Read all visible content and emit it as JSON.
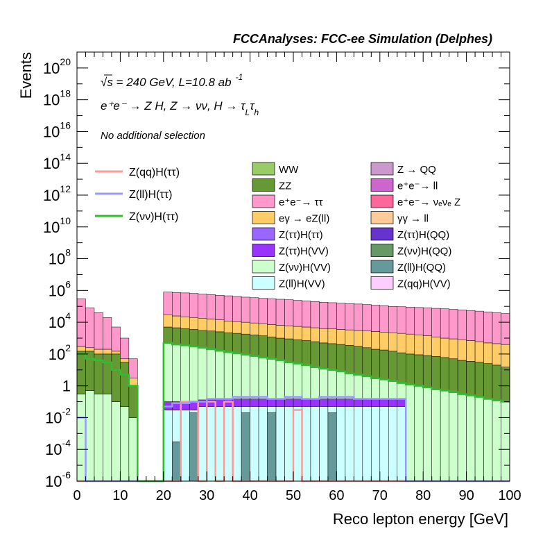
{
  "header": {
    "title": "FCCAnalyses: FCC-ee Simulation (Delphes)"
  },
  "labels": {
    "sqrt_s": "√s = 240 GeV, L=10.8 ab",
    "lumi_exp": "-1",
    "process": "e⁺e⁻ → Z H, Z → νν, H → τ",
    "process_sub1": "L",
    "process_tau2": "τ",
    "process_sub2": "h",
    "selection": "No additional selection"
  },
  "chart_data": {
    "type": "histogram-stacked-log",
    "xlabel": "Reco lepton energy [GeV]",
    "ylabel": "Events",
    "xlim": [
      0,
      100
    ],
    "ylim": [
      1e-06,
      1e+21
    ],
    "yscale": "log",
    "bin_width": 2,
    "x_ticks": [
      "0",
      "10",
      "20",
      "30",
      "40",
      "50",
      "60",
      "70",
      "80",
      "90",
      "100"
    ],
    "y_ticks": [
      {
        "mant": "10",
        "exp": "-6"
      },
      {
        "mant": "10",
        "exp": "-4"
      },
      {
        "mant": "10",
        "exp": "-2"
      },
      {
        "mant": "1",
        "exp": ""
      },
      {
        "mant": "10",
        "exp": "2"
      },
      {
        "mant": "10",
        "exp": "4"
      },
      {
        "mant": "10",
        "exp": "6"
      },
      {
        "mant": "10",
        "exp": "8"
      },
      {
        "mant": "10",
        "exp": "10"
      },
      {
        "mant": "10",
        "exp": "12"
      },
      {
        "mant": "10",
        "exp": "14"
      },
      {
        "mant": "10",
        "exp": "16"
      },
      {
        "mant": "10",
        "exp": "18"
      },
      {
        "mant": "10",
        "exp": "20"
      }
    ],
    "stack_legend": [
      {
        "name": "WW",
        "color": "#99cc66"
      },
      {
        "name": "Z → QQ",
        "color": "#cc99cc"
      },
      {
        "name": "ZZ",
        "color": "#669933"
      },
      {
        "name": "e⁺e⁻→ ll",
        "color": "#cc66cc"
      },
      {
        "name": "e⁺e⁻→ ττ",
        "color": "#ff99cc"
      },
      {
        "name": "e⁺e⁻→ νₑνₑ Z",
        "color": "#ff6699"
      },
      {
        "name": "eγ → eZ(ll)",
        "color": "#ffcc66"
      },
      {
        "name": "γγ → ll",
        "color": "#ffcc99"
      },
      {
        "name": "Z(ττ)H(ττ)",
        "color": "#9966ff"
      },
      {
        "name": "Z(ττ)H(QQ)",
        "color": "#6633cc"
      },
      {
        "name": "Z(ττ)H(VV)",
        "color": "#9933ff"
      },
      {
        "name": "Z(νν)H(QQ)",
        "color": "#669966"
      },
      {
        "name": "Z(νν)H(VV)",
        "color": "#ccffcc"
      },
      {
        "name": "Z(ll)H(QQ)",
        "color": "#669999"
      },
      {
        "name": "Z(ll)H(VV)",
        "color": "#ccffff"
      },
      {
        "name": "Z(qq)H(VV)",
        "color": "#ffccff"
      }
    ],
    "signal_legend": [
      {
        "name": "Z(qq)H(ττ)",
        "color": "#ff9999"
      },
      {
        "name": "Z(ll)H(ττ)",
        "color": "#9999ff"
      },
      {
        "name": "Z(νν)H(ττ)",
        "color": "#33bb33"
      }
    ],
    "stack_bounds": {
      "bins_low_energy": [
        [
          1e-06,
          1e-06,
          1e-06,
          1e-06,
          1e-06,
          1e-06,
          1e-06,
          1e-06,
          1e-06,
          1e-06,
          1e-06,
          1e-06,
          1e-06,
          1e-06,
          1e-06,
          1e-06,
          1e-06,
          1e-06,
          1e-06,
          1e-06,
          1e-06,
          1e-06,
          1e-06,
          1e-06,
          1e-06,
          1e-06,
          1e-06,
          1e-06,
          1e-06,
          1e-06,
          1e-06,
          1e-06,
          1e-06,
          1e-06,
          1e-06,
          1e-06,
          1e-06,
          1e-06,
          1e-06,
          1e-06,
          1e-06,
          1e-06,
          1e-06,
          1e-06,
          1e-06,
          1e-06,
          1e-06,
          1e-06,
          1e-06,
          1e-06
        ],
        [
          1e-06,
          1e-06,
          1e-06,
          1e-06,
          1e-06,
          1e-06,
          1e-06,
          1e-06,
          1e-06,
          1e-06,
          1e-06,
          0.0003,
          1e-06,
          0.02,
          1e-06,
          1e-06,
          1e-06,
          1e-06,
          1e-06,
          0.02,
          1e-06,
          1e-06,
          0.02,
          1e-06,
          1e-06,
          1e-06,
          1e-06,
          1e-06,
          1e-06,
          0.02,
          1e-06,
          1e-06,
          1e-06,
          1e-06,
          1e-06,
          1e-06,
          1e-06,
          1e-06,
          1e-06,
          1e-06,
          1e-06,
          1e-06,
          1e-06,
          1e-06,
          1e-06,
          1e-06,
          1e-06,
          1e-06,
          1e-06,
          1e-06
        ],
        [
          1e-06,
          1e-06,
          1e-06,
          1e-06,
          1e-06,
          1e-06,
          1e-06,
          1e-06,
          1e-06,
          1e-06,
          0.03,
          0.03,
          0.03,
          0.03,
          0.05,
          0.05,
          0.05,
          0.05,
          0.05,
          0.05,
          0.05,
          0.05,
          0.05,
          0.05,
          0.05,
          0.05,
          0.05,
          0.05,
          0.05,
          0.05,
          0.05,
          0.05,
          0.05,
          0.05,
          0.05,
          0.05,
          0.05,
          0.05,
          1e-06,
          1e-06,
          1e-06,
          1e-06,
          1e-06,
          1e-06,
          1e-06,
          1e-06,
          1e-06,
          1e-06,
          1e-06,
          1e-06
        ],
        [
          1e-06,
          1e-06,
          1e-06,
          1e-06,
          1e-06,
          1e-06,
          1e-06,
          1e-06,
          1e-06,
          1e-06,
          0.1,
          0.1,
          0.1,
          0.1,
          0.13,
          0.13,
          0.15,
          0.15,
          0.15,
          0.15,
          0.15,
          0.15,
          0.15,
          0.15,
          0.15,
          0.15,
          0.15,
          0.15,
          0.15,
          0.15,
          0.15,
          0.15,
          0.15,
          0.15,
          0.15,
          0.15,
          0.15,
          0.15,
          1e-06,
          1e-06,
          1e-06,
          1e-06,
          1e-06,
          1e-06,
          1e-06,
          1e-06,
          1e-06,
          1e-06,
          1e-06,
          1e-06
        ]
      ],
      "green_boundary": [
        0.3,
        0.5,
        0.3,
        0.3,
        0.1,
        0.05,
        0.01,
        1e-06,
        1e-06,
        1e-06,
        500,
        400,
        350,
        300,
        250,
        200,
        160,
        130,
        110,
        90,
        75,
        60,
        50,
        40,
        30,
        25,
        20,
        15,
        12,
        10,
        8,
        6,
        5,
        4,
        3,
        2.5,
        2,
        1.5,
        1.2,
        1,
        0.8,
        0.6,
        0.5,
        0.4,
        0.3,
        0.25,
        0.2,
        0.15,
        0.12,
        0.1
      ],
      "lightpink_boundary": [
        150,
        150,
        100,
        100,
        100,
        30,
        1,
        1e-06,
        1e-06,
        1e-06,
        5000,
        4500,
        4000,
        3500,
        3000,
        2800,
        2500,
        2200,
        2000,
        1800,
        1600,
        1400,
        1200,
        1000,
        900,
        800,
        700,
        600,
        500,
        450,
        400,
        350,
        300,
        250,
        200,
        180,
        150,
        120,
        100,
        90,
        80,
        70,
        60,
        50,
        40,
        35,
        30,
        25,
        20,
        15
      ],
      "olive_boundary": [
        300,
        250,
        200,
        200,
        150,
        50,
        3,
        1e-06,
        1e-06,
        1e-06,
        30000,
        25000,
        22000,
        20000,
        18000,
        16000,
        14000,
        12000,
        11000,
        10000,
        9000,
        8000,
        7000,
        6500,
        6000,
        5500,
        5000,
        4500,
        4000,
        3800,
        3500,
        3300,
        3000,
        2800,
        2600,
        2400,
        2200,
        2000,
        1800,
        1600,
        1400,
        1200,
        1000,
        900,
        800,
        700,
        600,
        500,
        450,
        400
      ],
      "total": [
        300000,
        80000,
        40000,
        20000,
        5000,
        1000,
        50,
        1e-06,
        1e-06,
        1e-06,
        800000,
        750000,
        700000,
        650000,
        600000,
        550000,
        500000,
        460000,
        420000,
        380000,
        350000,
        320000,
        300000,
        280000,
        260000,
        240000,
        220000,
        200000,
        180000,
        170000,
        160000,
        150000,
        140000,
        130000,
        120000,
        110000,
        100000,
        95000,
        90000,
        85000,
        80000,
        75000,
        70000,
        65000,
        60000,
        55000,
        50000,
        45000,
        40000,
        35000
      ]
    },
    "signal_values": {
      "Z(qq)H(ττ)": [
        1e-06,
        1e-06,
        1e-06,
        1e-06,
        1e-06,
        1e-06,
        1e-06,
        1e-06,
        1e-06,
        1e-06,
        1e-06,
        1e-06,
        0.1,
        0.1,
        1e-06,
        0.1,
        1e-06,
        0.1,
        1e-06,
        1e-06,
        1e-06,
        1e-06,
        1e-06,
        1e-06,
        1e-06,
        0.03,
        1e-06,
        1e-06,
        1e-06,
        1e-06,
        1e-06,
        1e-06,
        1e-06,
        1e-06,
        1e-06,
        1e-06,
        1e-06,
        1e-06,
        1e-06,
        1e-06,
        1e-06,
        1e-06,
        1e-06,
        1e-06,
        1e-06,
        1e-06,
        1e-06,
        1e-06,
        1e-06,
        1e-06
      ],
      "Z(ll)H(ττ)": [
        0.01,
        1e-06,
        1e-06,
        1e-06,
        1e-06,
        1e-06,
        1e-06,
        1e-06,
        1e-06,
        1e-06,
        0.05,
        0.08,
        0.08,
        0.1,
        0.1,
        0.15,
        0.15,
        0.15,
        0.2,
        0.2,
        0.2,
        0.2,
        0.15,
        0.15,
        0.2,
        0.2,
        0.15,
        0.15,
        0.2,
        0.2,
        0.2,
        0.2,
        0.15,
        0.15,
        0.15,
        0.15,
        0.15,
        0.15,
        1e-06,
        1e-06,
        1e-06,
        1e-06,
        1e-06,
        1e-06,
        1e-06,
        1e-06,
        1e-06,
        1e-06,
        1e-06,
        1e-06
      ],
      "Z(νν)H(ττ)": [
        100,
        50,
        40,
        30,
        10,
        5,
        1,
        1e-06,
        1e-06,
        1e-06,
        500,
        400,
        350,
        300,
        250,
        200,
        160,
        130,
        110,
        90,
        75,
        60,
        50,
        40,
        30,
        25,
        20,
        15,
        12,
        10,
        8,
        6,
        5,
        4,
        3,
        2.5,
        2,
        1.5,
        1.2,
        1,
        0.8,
        0.6,
        0.5,
        0.4,
        0.3,
        0.25,
        0.2,
        0.15,
        0.12,
        0.1
      ]
    }
  }
}
